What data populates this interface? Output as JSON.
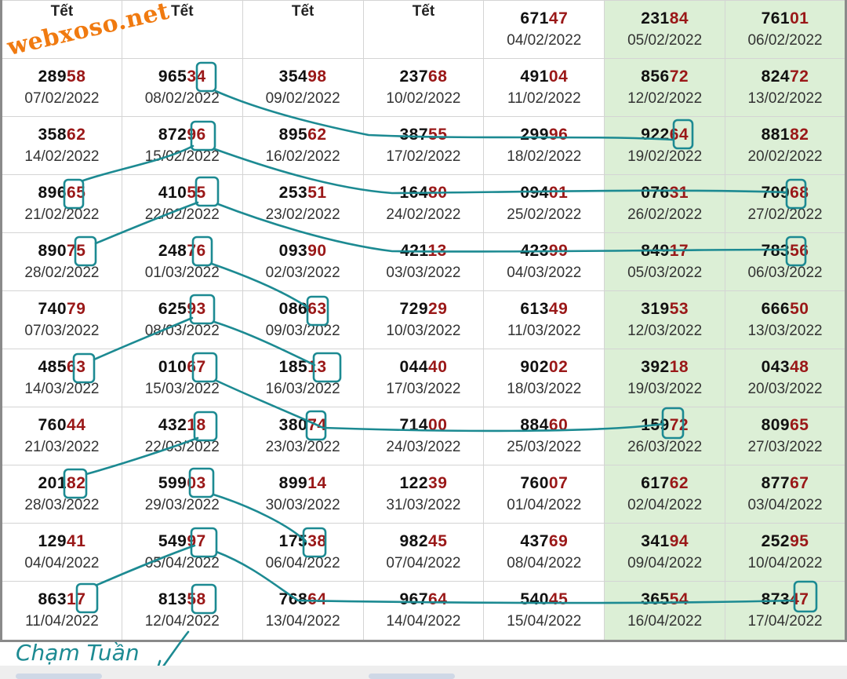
{
  "watermark": "webxoso.net",
  "note": "Chạm Tuần",
  "rows": [
    [
      {
        "head": "",
        "tail": "",
        "date": "Tết"
      },
      {
        "head": "",
        "tail": "",
        "date": "Tết"
      },
      {
        "head": "",
        "tail": "",
        "date": "Tết"
      },
      {
        "head": "",
        "tail": "",
        "date": "Tết"
      },
      {
        "head": "671",
        "tail": "47",
        "date": "04/02/2022"
      },
      {
        "head": "231",
        "tail": "84",
        "date": "05/02/2022"
      },
      {
        "head": "761",
        "tail": "01",
        "date": "06/02/2022"
      }
    ],
    [
      {
        "head": "289",
        "tail": "58",
        "date": "07/02/2022"
      },
      {
        "head": "965",
        "tail": "34",
        "date": "08/02/2022"
      },
      {
        "head": "354",
        "tail": "98",
        "date": "09/02/2022"
      },
      {
        "head": "237",
        "tail": "68",
        "date": "10/02/2022"
      },
      {
        "head": "491",
        "tail": "04",
        "date": "11/02/2022"
      },
      {
        "head": "856",
        "tail": "72",
        "date": "12/02/2022"
      },
      {
        "head": "824",
        "tail": "72",
        "date": "13/02/2022"
      }
    ],
    [
      {
        "head": "358",
        "tail": "62",
        "date": "14/02/2022"
      },
      {
        "head": "872",
        "tail": "96",
        "date": "15/02/2022"
      },
      {
        "head": "895",
        "tail": "62",
        "date": "16/02/2022"
      },
      {
        "head": "387",
        "tail": "55",
        "date": "17/02/2022"
      },
      {
        "head": "299",
        "tail": "96",
        "date": "18/02/2022"
      },
      {
        "head": "922",
        "tail": "64",
        "date": "19/02/2022"
      },
      {
        "head": "881",
        "tail": "82",
        "date": "20/02/2022"
      }
    ],
    [
      {
        "head": "896",
        "tail": "65",
        "date": "21/02/2022"
      },
      {
        "head": "410",
        "tail": "55",
        "date": "22/02/2022"
      },
      {
        "head": "253",
        "tail": "51",
        "date": "23/02/2022"
      },
      {
        "head": "164",
        "tail": "80",
        "date": "24/02/2022"
      },
      {
        "head": "094",
        "tail": "01",
        "date": "25/02/2022"
      },
      {
        "head": "076",
        "tail": "31",
        "date": "26/02/2022"
      },
      {
        "head": "709",
        "tail": "68",
        "date": "27/02/2022"
      }
    ],
    [
      {
        "head": "890",
        "tail": "75",
        "date": "28/02/2022"
      },
      {
        "head": "248",
        "tail": "76",
        "date": "01/03/2022"
      },
      {
        "head": "093",
        "tail": "90",
        "date": "02/03/2022"
      },
      {
        "head": "421",
        "tail": "13",
        "date": "03/03/2022"
      },
      {
        "head": "423",
        "tail": "99",
        "date": "04/03/2022"
      },
      {
        "head": "849",
        "tail": "17",
        "date": "05/03/2022"
      },
      {
        "head": "783",
        "tail": "56",
        "date": "06/03/2022"
      }
    ],
    [
      {
        "head": "740",
        "tail": "79",
        "date": "07/03/2022"
      },
      {
        "head": "625",
        "tail": "93",
        "date": "08/03/2022"
      },
      {
        "head": "086",
        "tail": "63",
        "date": "09/03/2022"
      },
      {
        "head": "729",
        "tail": "29",
        "date": "10/03/2022"
      },
      {
        "head": "613",
        "tail": "49",
        "date": "11/03/2022"
      },
      {
        "head": "319",
        "tail": "53",
        "date": "12/03/2022"
      },
      {
        "head": "666",
        "tail": "50",
        "date": "13/03/2022"
      }
    ],
    [
      {
        "head": "485",
        "tail": "63",
        "date": "14/03/2022"
      },
      {
        "head": "010",
        "tail": "67",
        "date": "15/03/2022"
      },
      {
        "head": "185",
        "tail": "13",
        "date": "16/03/2022"
      },
      {
        "head": "044",
        "tail": "40",
        "date": "17/03/2022"
      },
      {
        "head": "902",
        "tail": "02",
        "date": "18/03/2022"
      },
      {
        "head": "392",
        "tail": "18",
        "date": "19/03/2022"
      },
      {
        "head": "043",
        "tail": "48",
        "date": "20/03/2022"
      }
    ],
    [
      {
        "head": "760",
        "tail": "44",
        "date": "21/03/2022"
      },
      {
        "head": "432",
        "tail": "18",
        "date": "22/03/2022"
      },
      {
        "head": "380",
        "tail": "74",
        "date": "23/03/2022"
      },
      {
        "head": "714",
        "tail": "00",
        "date": "24/03/2022"
      },
      {
        "head": "884",
        "tail": "60",
        "date": "25/03/2022"
      },
      {
        "head": "159",
        "tail": "72",
        "date": "26/03/2022"
      },
      {
        "head": "809",
        "tail": "65",
        "date": "27/03/2022"
      }
    ],
    [
      {
        "head": "201",
        "tail": "82",
        "date": "28/03/2022"
      },
      {
        "head": "599",
        "tail": "03",
        "date": "29/03/2022"
      },
      {
        "head": "899",
        "tail": "14",
        "date": "30/03/2022"
      },
      {
        "head": "122",
        "tail": "39",
        "date": "31/03/2022"
      },
      {
        "head": "760",
        "tail": "07",
        "date": "01/04/2022"
      },
      {
        "head": "617",
        "tail": "62",
        "date": "02/04/2022"
      },
      {
        "head": "877",
        "tail": "67",
        "date": "03/04/2022"
      }
    ],
    [
      {
        "head": "129",
        "tail": "41",
        "date": "04/04/2022"
      },
      {
        "head": "549",
        "tail": "97",
        "date": "05/04/2022"
      },
      {
        "head": "175",
        "tail": "38",
        "date": "06/04/2022"
      },
      {
        "head": "982",
        "tail": "45",
        "date": "07/04/2022"
      },
      {
        "head": "437",
        "tail": "69",
        "date": "08/04/2022"
      },
      {
        "head": "341",
        "tail": "94",
        "date": "09/04/2022"
      },
      {
        "head": "252",
        "tail": "95",
        "date": "10/04/2022"
      }
    ],
    [
      {
        "head": "863",
        "tail": "17",
        "date": "11/04/2022"
      },
      {
        "head": "813",
        "tail": "58",
        "date": "12/04/2022"
      },
      {
        "head": "768",
        "tail": "64",
        "date": "13/04/2022"
      },
      {
        "head": "967",
        "tail": "64",
        "date": "14/04/2022"
      },
      {
        "head": "540",
        "tail": "45",
        "date": "15/04/2022"
      },
      {
        "head": "365",
        "tail": "54",
        "date": "16/04/2022"
      },
      {
        "head": "873",
        "tail": "47",
        "date": "17/04/2022"
      }
    ]
  ],
  "colors": {
    "weekend_bg": "#dcefd6",
    "tail": "#9a1818",
    "ink": "#1c8a92",
    "watermark": "#f07a10"
  }
}
